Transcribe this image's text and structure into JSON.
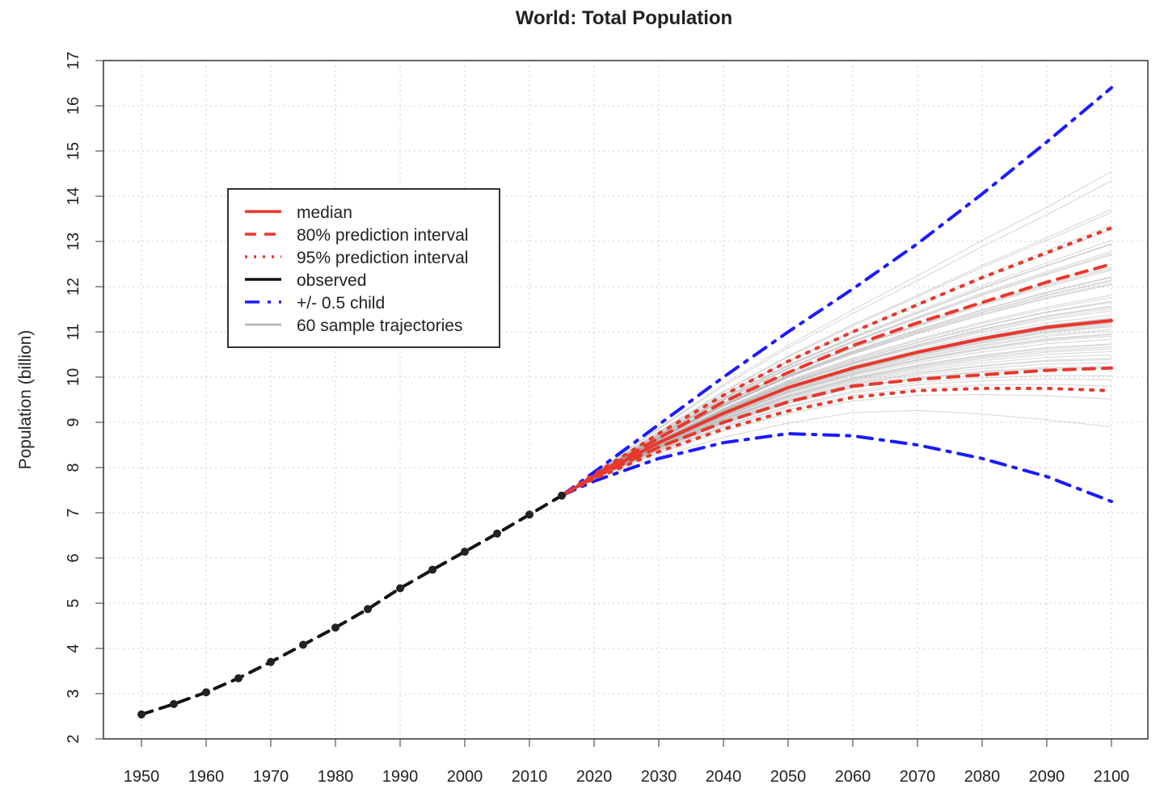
{
  "chart_data": {
    "type": "line",
    "title": "World: Total Population",
    "xlabel": "",
    "ylabel": "Population (billion)",
    "xlim": [
      1944,
      2106
    ],
    "ylim": [
      2,
      17
    ],
    "x_ticks": [
      1950,
      1960,
      1970,
      1980,
      1990,
      2000,
      2010,
      2020,
      2030,
      2040,
      2050,
      2060,
      2070,
      2080,
      2090,
      2100
    ],
    "y_ticks": [
      2,
      3,
      4,
      5,
      6,
      7,
      8,
      9,
      10,
      11,
      12,
      13,
      14,
      15,
      16,
      17
    ],
    "grid": true,
    "legend_placement": "top-left",
    "colors": {
      "median": "#e8372c",
      "interval": "#e8372c",
      "observed": "#111111",
      "half_child": "#1a1aff",
      "trajectories": "#bbbbbb"
    },
    "legend": [
      {
        "label": "median",
        "style": "solid",
        "color": "#e8372c"
      },
      {
        "label": "80% prediction interval",
        "style": "dashed",
        "color": "#e8372c"
      },
      {
        "label": "95% prediction interval",
        "style": "dotted",
        "color": "#e8372c"
      },
      {
        "label": "observed",
        "style": "solid",
        "color": "#111111"
      },
      {
        "label": "+/- 0.5 child",
        "style": "dashdot",
        "color": "#1a1aff"
      },
      {
        "label": "60 sample trajectories",
        "style": "solid",
        "color": "#bbbbbb"
      }
    ],
    "observed": {
      "x": [
        1950,
        1955,
        1960,
        1965,
        1970,
        1975,
        1980,
        1985,
        1990,
        1995,
        2000,
        2005,
        2010,
        2015
      ],
      "y": [
        2.54,
        2.77,
        3.03,
        3.34,
        3.7,
        4.08,
        4.46,
        4.87,
        5.33,
        5.74,
        6.14,
        6.54,
        6.96,
        7.38
      ]
    },
    "projection_x": [
      2015,
      2020,
      2030,
      2040,
      2050,
      2060,
      2070,
      2080,
      2090,
      2100
    ],
    "series": [
      {
        "name": "median",
        "values": [
          7.38,
          7.8,
          8.55,
          9.2,
          9.77,
          10.2,
          10.55,
          10.85,
          11.1,
          11.25
        ]
      },
      {
        "name": "80% prediction interval upper",
        "values": [
          7.38,
          7.82,
          8.65,
          9.45,
          10.1,
          10.7,
          11.2,
          11.65,
          12.1,
          12.5
        ]
      },
      {
        "name": "80% prediction interval lower",
        "values": [
          7.38,
          7.78,
          8.45,
          9.0,
          9.45,
          9.8,
          9.95,
          10.05,
          10.15,
          10.2
        ]
      },
      {
        "name": "95% prediction interval upper",
        "values": [
          7.38,
          7.85,
          8.75,
          9.6,
          10.35,
          11.0,
          11.6,
          12.2,
          12.75,
          13.3
        ]
      },
      {
        "name": "95% prediction interval lower",
        "values": [
          7.38,
          7.75,
          8.35,
          8.85,
          9.25,
          9.55,
          9.7,
          9.75,
          9.75,
          9.7
        ]
      },
      {
        "name": "+0.5 child",
        "values": [
          7.38,
          7.9,
          8.95,
          10.0,
          11.0,
          11.95,
          12.95,
          14.05,
          15.2,
          16.4
        ]
      },
      {
        "name": "-0.5 child",
        "values": [
          7.38,
          7.7,
          8.2,
          8.55,
          8.75,
          8.7,
          8.5,
          8.2,
          7.8,
          7.25
        ]
      }
    ],
    "trajectory_count": 60
  }
}
